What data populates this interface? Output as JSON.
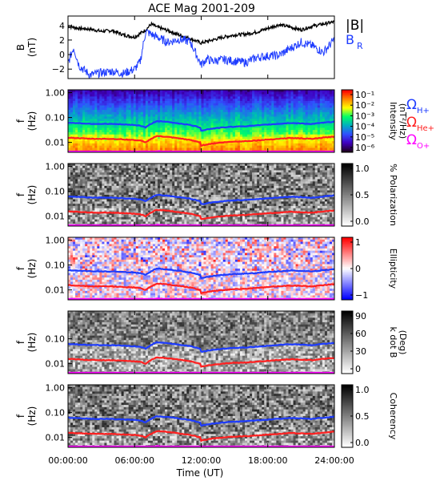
{
  "chart_data": {
    "title": "ACE Mag 2001-209",
    "xlabel": "Time (UT)",
    "x_ticks": [
      "00:00:00",
      "06:00:00",
      "12:00:00",
      "18:00:00",
      "24:00:00"
    ],
    "x_range_hours": [
      0,
      24
    ],
    "panels": [
      {
        "type": "line",
        "ylabel": "B",
        "yunit": "(nT)",
        "ylim": [
          -3.3,
          5.3
        ],
        "y_ticks": [
          4,
          2,
          0,
          -2
        ],
        "y_tick_labels": [
          "4",
          "2",
          "0",
          "−2"
        ],
        "series": [
          {
            "name": "|B|",
            "color": "#000000",
            "x": [
              0,
              1,
              2,
              3,
              4,
              5,
              6,
              7,
              7.5,
              8,
              9,
              10,
              11,
              12,
              13,
              14,
              15,
              16,
              17,
              18,
              19,
              20,
              21,
              22,
              23,
              24
            ],
            "y": [
              3.9,
              3.6,
              3.5,
              3.2,
              3.3,
              2.7,
              2.4,
              3.4,
              4.2,
              3.8,
              3.3,
              2.7,
              2.2,
              1.6,
              2.0,
              2.4,
              2.7,
              2.8,
              3.1,
              3.6,
              4.1,
              3.8,
              3.4,
              3.9,
              4.2,
              4.5
            ]
          },
          {
            "name": "B",
            "name_sub": "R",
            "color": "#1e3cff",
            "x": [
              0,
              0.5,
              1,
              1.5,
              2,
              3,
              4,
              5,
              6,
              6.5,
              7,
              8,
              9,
              10,
              11,
              12,
              12.5,
              13,
              14,
              15,
              16,
              17,
              18,
              19,
              20,
              21,
              22,
              23,
              24
            ],
            "y": [
              -1.2,
              1.0,
              -1.5,
              -2.2,
              -2.8,
              -2.5,
              -2.3,
              -2.6,
              -2.0,
              -1.0,
              3.2,
              2.4,
              1.7,
              2.1,
              1.8,
              -1.4,
              -0.6,
              -0.9,
              -0.7,
              -0.9,
              -1.1,
              -0.4,
              -0.2,
              -0.1,
              0.8,
              1.7,
              1.2,
              0.3,
              2.1
            ]
          }
        ]
      },
      {
        "type": "heatmap",
        "ylabel": "f",
        "yunit": "(Hz)",
        "y_ticks": [
          "1.00",
          "0.10",
          "0.01"
        ],
        "colorbar": {
          "label": "Intensity",
          "unit": "(nT²/Hz)",
          "ticks": [
            "10⁻¹",
            "10⁻²",
            "10⁻³",
            "10⁻⁴",
            "10⁻⁵",
            "10⁻⁶"
          ],
          "colors": [
            "#ff0000",
            "#ff8800",
            "#ffff00",
            "#00ff66",
            "#00b0c0",
            "#3050ff",
            "#4000c0",
            "#200020"
          ]
        },
        "legend": [
          {
            "label": "Ω",
            "sub": "H+",
            "color": "#1e3cff"
          },
          {
            "label": "Ω",
            "sub": "He+",
            "color": "#ff2020"
          },
          {
            "label": "Ω",
            "sub": "O+",
            "color": "#ff00ff"
          }
        ]
      },
      {
        "type": "heatmap",
        "ylabel": "f",
        "yunit": "(Hz)",
        "y_ticks": [
          "1.00",
          "0.10",
          "0.01"
        ],
        "colorbar": {
          "label": "% Polarization",
          "unit": "",
          "ticks": [
            "1.0",
            "0.5",
            "0.0"
          ],
          "colors": [
            "#000000",
            "#ffffff"
          ]
        }
      },
      {
        "type": "heatmap",
        "ylabel": "f",
        "yunit": "(Hz)",
        "y_ticks": [
          "1.00",
          "0.10",
          "0.01"
        ],
        "colorbar": {
          "label": "Ellipticity",
          "unit": "",
          "ticks": [
            "1",
            "0",
            "−1"
          ],
          "colors": [
            "#ff0000",
            "#ffffff",
            "#0000ff"
          ]
        }
      },
      {
        "type": "heatmap",
        "ylabel": "f",
        "yunit": "(Hz)",
        "y_ticks": [
          "0.10",
          "0.01"
        ],
        "colorbar": {
          "label": "k dot B",
          "unit": "(Deg)",
          "ticks": [
            "90",
            "60",
            "30",
            "0"
          ],
          "colors": [
            "#000000",
            "#ffffff"
          ]
        }
      },
      {
        "type": "heatmap",
        "ylabel": "f",
        "yunit": "(Hz)",
        "y_ticks": [
          "1.00",
          "0.10",
          "0.01"
        ],
        "colorbar": {
          "label": "Coherency",
          "unit": "",
          "ticks": [
            "1.0",
            "0.5",
            "0.0"
          ],
          "colors": [
            "#000000",
            "#ffffff"
          ]
        }
      }
    ],
    "gyrofrequency_lines": {
      "x": [
        0,
        2,
        4,
        6,
        6.5,
        7,
        8,
        9,
        10,
        11,
        11.9,
        12,
        13,
        14,
        15,
        16,
        17,
        18,
        19,
        20,
        21,
        22,
        23,
        24
      ],
      "H+": [
        0.062,
        0.056,
        0.055,
        0.05,
        0.047,
        0.04,
        0.072,
        0.066,
        0.058,
        0.05,
        0.04,
        0.03,
        0.036,
        0.04,
        0.043,
        0.045,
        0.048,
        0.052,
        0.056,
        0.06,
        0.058,
        0.055,
        0.062,
        0.068
      ],
      "He+": [
        0.0155,
        0.014,
        0.0138,
        0.0125,
        0.0118,
        0.01,
        0.018,
        0.0165,
        0.0145,
        0.0125,
        0.01,
        0.0075,
        0.009,
        0.01,
        0.0108,
        0.0112,
        0.012,
        0.013,
        0.014,
        0.015,
        0.0145,
        0.0138,
        0.0155,
        0.017
      ],
      "O+": [
        0.0039,
        0.0035,
        0.0034,
        0.0031,
        0.003,
        0.0025,
        0.0045,
        0.0041,
        0.0036,
        0.0031,
        0.0025,
        0.0019,
        0.0022,
        0.0025,
        0.0027,
        0.0028,
        0.003,
        0.0033,
        0.0035,
        0.0038,
        0.0036,
        0.0034,
        0.0039,
        0.0043
      ]
    }
  }
}
